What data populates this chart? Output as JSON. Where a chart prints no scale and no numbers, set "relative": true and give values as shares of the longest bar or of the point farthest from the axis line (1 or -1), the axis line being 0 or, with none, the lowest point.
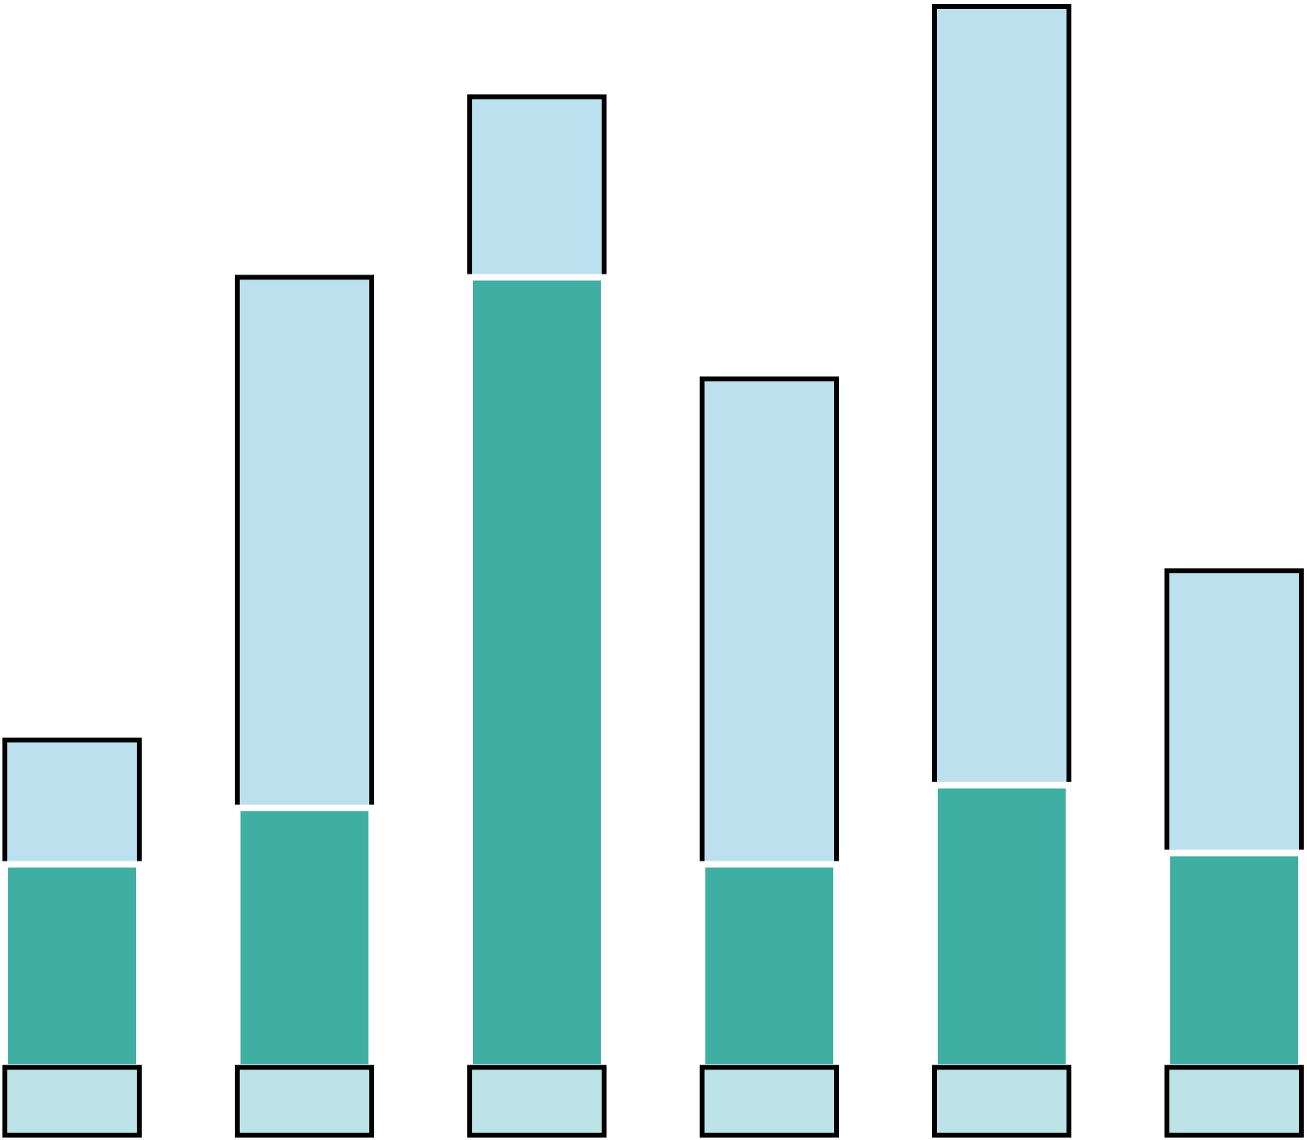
{
  "chart_data": {
    "type": "bar",
    "relative": true,
    "stacked": true,
    "categories": [
      null,
      null,
      null,
      null,
      null,
      null
    ],
    "series": [
      {
        "color": "#bde3e6",
        "values": [
          0.06,
          0.06,
          0.06,
          0.06,
          0.06,
          0.06
        ]
      },
      {
        "color": "#40afa3",
        "values": [
          0.18,
          0.23,
          0.7,
          0.18,
          0.25,
          0.19
        ]
      },
      {
        "color": "#bde0ef",
        "values": [
          0.11,
          0.47,
          0.16,
          0.43,
          0.69,
          0.25
        ]
      }
    ]
  }
}
